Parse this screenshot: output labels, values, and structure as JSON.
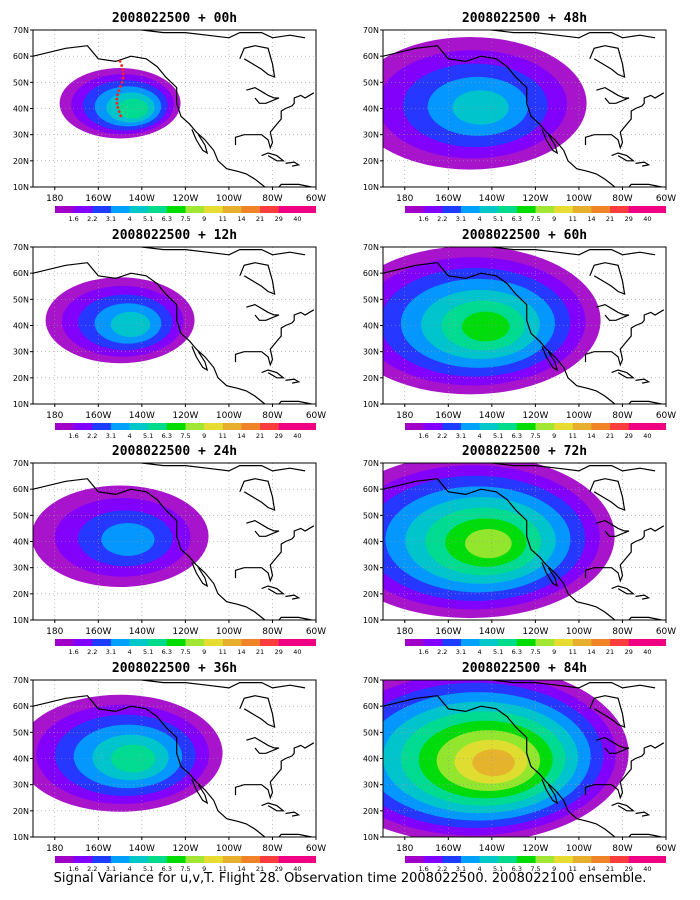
{
  "caption": "Signal Variance for u,v,T. Flight 28. Observation time 2008022500. 2008022100 ensemble.",
  "axes": {
    "lon_ticks": [
      "180",
      "160W",
      "140W",
      "120W",
      "100W",
      "80W",
      "60W"
    ],
    "lat_ticks": [
      "10N",
      "20N",
      "30N",
      "40N",
      "50N",
      "60N",
      "70N"
    ]
  },
  "chart_data": [
    {
      "type": "heatmap",
      "title": "2008022500 + 00h",
      "lead_hours": 0,
      "xlim": [
        -190,
        -60
      ],
      "ylim": [
        10,
        70
      ],
      "grid": true,
      "colorbar": {
        "levels": [
          "1.6",
          "2.2",
          "3.1",
          "4",
          "5.1",
          "6.3",
          "7.5",
          "9",
          "11",
          "14",
          "21",
          "29",
          "40"
        ],
        "colors": [
          "#a000c8",
          "#7f00ff",
          "#1e3cff",
          "#00a0ff",
          "#00c8c8",
          "#00dc8c",
          "#00dc00",
          "#a0e632",
          "#e6dc32",
          "#e6af2d",
          "#f08228",
          "#fa3c3c",
          "#f00082"
        ]
      },
      "signal_max_level": "6.3",
      "observation_track": true
    },
    {
      "type": "heatmap",
      "title": "2008022500 + 48h",
      "lead_hours": 48,
      "xlim": [
        -190,
        -60
      ],
      "ylim": [
        10,
        70
      ],
      "grid": true,
      "colorbar": {
        "levels": [
          "1.6",
          "2.2",
          "3.1",
          "4",
          "5.1",
          "6.3",
          "7.5",
          "9",
          "11",
          "14",
          "21",
          "29",
          "40"
        ],
        "colors": [
          "#a000c8",
          "#7f00ff",
          "#1e3cff",
          "#00a0ff",
          "#00c8c8",
          "#00dc8c",
          "#00dc00",
          "#a0e632",
          "#e6dc32",
          "#e6af2d",
          "#f08228",
          "#fa3c3c",
          "#f00082"
        ]
      },
      "signal_max_level": "5.1"
    },
    {
      "type": "heatmap",
      "title": "2008022500 + 12h",
      "lead_hours": 12,
      "xlim": [
        -190,
        -60
      ],
      "ylim": [
        10,
        70
      ],
      "grid": true,
      "colorbar": {
        "levels": [
          "1.6",
          "2.2",
          "3.1",
          "4",
          "5.1",
          "6.3",
          "7.5",
          "9",
          "11",
          "14",
          "21",
          "29",
          "40"
        ],
        "colors": [
          "#a000c8",
          "#7f00ff",
          "#1e3cff",
          "#00a0ff",
          "#00c8c8",
          "#00dc8c",
          "#00dc00",
          "#a0e632",
          "#e6dc32",
          "#e6af2d",
          "#f08228",
          "#fa3c3c",
          "#f00082"
        ]
      },
      "signal_max_level": "5.1"
    },
    {
      "type": "heatmap",
      "title": "2008022500 + 60h",
      "lead_hours": 60,
      "xlim": [
        -190,
        -60
      ],
      "ylim": [
        10,
        70
      ],
      "grid": true,
      "colorbar": {
        "levels": [
          "1.6",
          "2.2",
          "3.1",
          "4",
          "5.1",
          "6.3",
          "7.5",
          "9",
          "11",
          "14",
          "21",
          "29",
          "40"
        ],
        "colors": [
          "#a000c8",
          "#7f00ff",
          "#1e3cff",
          "#00a0ff",
          "#00c8c8",
          "#00dc8c",
          "#00dc00",
          "#a0e632",
          "#e6dc32",
          "#e6af2d",
          "#f08228",
          "#fa3c3c",
          "#f00082"
        ]
      },
      "signal_max_level": "7.5"
    },
    {
      "type": "heatmap",
      "title": "2008022500 + 24h",
      "lead_hours": 24,
      "xlim": [
        -190,
        -60
      ],
      "ylim": [
        10,
        70
      ],
      "grid": true,
      "colorbar": {
        "levels": [
          "1.6",
          "2.2",
          "3.1",
          "4",
          "5.1",
          "6.3",
          "7.5",
          "9",
          "11",
          "14",
          "21",
          "29",
          "40"
        ],
        "colors": [
          "#a000c8",
          "#7f00ff",
          "#1e3cff",
          "#00a0ff",
          "#00c8c8",
          "#00dc8c",
          "#00dc00",
          "#a0e632",
          "#e6dc32",
          "#e6af2d",
          "#f08228",
          "#fa3c3c",
          "#f00082"
        ]
      },
      "signal_max_level": "4"
    },
    {
      "type": "heatmap",
      "title": "2008022500 + 72h",
      "lead_hours": 72,
      "xlim": [
        -190,
        -60
      ],
      "ylim": [
        10,
        70
      ],
      "grid": true,
      "colorbar": {
        "levels": [
          "1.6",
          "2.2",
          "3.1",
          "4",
          "5.1",
          "6.3",
          "7.5",
          "9",
          "11",
          "14",
          "21",
          "29",
          "40"
        ],
        "colors": [
          "#a000c8",
          "#7f00ff",
          "#1e3cff",
          "#00a0ff",
          "#00c8c8",
          "#00dc8c",
          "#00dc00",
          "#a0e632",
          "#e6dc32",
          "#e6af2d",
          "#f08228",
          "#fa3c3c",
          "#f00082"
        ]
      },
      "signal_max_level": "9"
    },
    {
      "type": "heatmap",
      "title": "2008022500 + 36h",
      "lead_hours": 36,
      "xlim": [
        -190,
        -60
      ],
      "ylim": [
        10,
        70
      ],
      "grid": true,
      "colorbar": {
        "levels": [
          "1.6",
          "2.2",
          "3.1",
          "4",
          "5.1",
          "6.3",
          "7.5",
          "9",
          "11",
          "14",
          "21",
          "29",
          "40"
        ],
        "colors": [
          "#a000c8",
          "#7f00ff",
          "#1e3cff",
          "#00a0ff",
          "#00c8c8",
          "#00dc8c",
          "#00dc00",
          "#a0e632",
          "#e6dc32",
          "#e6af2d",
          "#f08228",
          "#fa3c3c",
          "#f00082"
        ]
      },
      "signal_max_level": "6.3"
    },
    {
      "type": "heatmap",
      "title": "2008022500 + 84h",
      "lead_hours": 84,
      "xlim": [
        -190,
        -60
      ],
      "ylim": [
        10,
        70
      ],
      "grid": true,
      "colorbar": {
        "levels": [
          "1.6",
          "2.2",
          "3.1",
          "4",
          "5.1",
          "6.3",
          "7.5",
          "9",
          "11",
          "14",
          "21",
          "29",
          "40"
        ],
        "colors": [
          "#a000c8",
          "#7f00ff",
          "#1e3cff",
          "#00a0ff",
          "#00c8c8",
          "#00dc8c",
          "#00dc00",
          "#a0e632",
          "#e6dc32",
          "#e6af2d",
          "#f08228",
          "#fa3c3c",
          "#f00082"
        ]
      },
      "signal_max_level": "14"
    }
  ]
}
